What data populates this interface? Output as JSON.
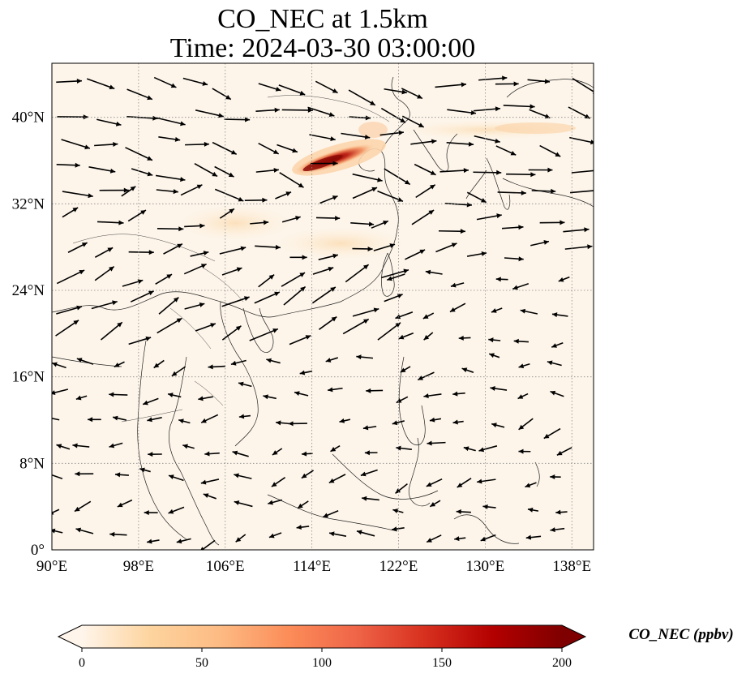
{
  "title": {
    "line1": "CO_NEC at 1.5km",
    "line2": "Time: 2024-03-30 03:00:00"
  },
  "map": {
    "lon_range": [
      90,
      140
    ],
    "lat_range": [
      0,
      45
    ],
    "lon_ticks": [
      {
        "value": 90,
        "label": "90°E"
      },
      {
        "value": 98,
        "label": "98°E"
      },
      {
        "value": 106,
        "label": "106°E"
      },
      {
        "value": 114,
        "label": "114°E"
      },
      {
        "value": 122,
        "label": "122°E"
      },
      {
        "value": 130,
        "label": "130°E"
      },
      {
        "value": 138,
        "label": "138°E"
      }
    ],
    "lat_ticks": [
      {
        "value": 0,
        "label": "0°"
      },
      {
        "value": 8,
        "label": "8°N"
      },
      {
        "value": 16,
        "label": "16°N"
      },
      {
        "value": 24,
        "label": "24°N"
      },
      {
        "value": 32,
        "label": "32°N"
      },
      {
        "value": 40,
        "label": "40°N"
      }
    ],
    "gridlines": true,
    "background_color": "#fdf5ea",
    "plume": {
      "variable": "CO_NEC",
      "units": "ppbv",
      "max_lon_lat": [
        116,
        36.5
      ],
      "axis_lon_lat": [
        [
          112.5,
          35
        ],
        [
          115,
          36
        ],
        [
          117.5,
          36.6
        ],
        [
          120,
          37.4
        ]
      ]
    }
  },
  "colorbar": {
    "label": "CO_NEC (ppbv)",
    "min": 0,
    "max": 200,
    "extend": "both",
    "ticks": [
      {
        "value": 0,
        "label": "0"
      },
      {
        "value": 50,
        "label": "50"
      },
      {
        "value": 100,
        "label": "100"
      },
      {
        "value": 150,
        "label": "150"
      },
      {
        "value": 200,
        "label": "200"
      }
    ],
    "colors": [
      "#fff5eb",
      "#fdd49e",
      "#fdbb84",
      "#fc8d59",
      "#ef6548",
      "#d7301f",
      "#b30000",
      "#7f0000"
    ]
  }
}
